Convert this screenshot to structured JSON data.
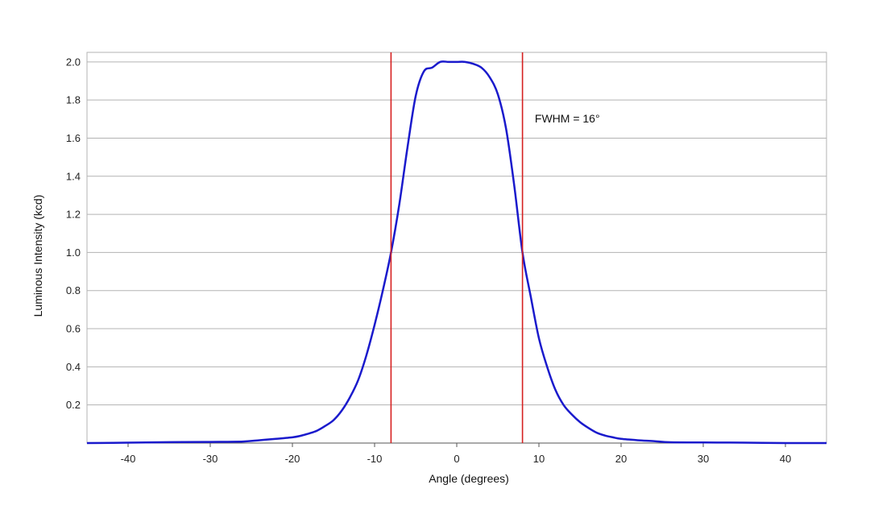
{
  "chart_data": {
    "type": "line",
    "title": "",
    "xlabel": "Angle (degrees)",
    "ylabel": "Luminous Intensity (kcd)",
    "xlim": [
      -45,
      45
    ],
    "ylim": [
      0,
      2.05
    ],
    "x_ticks": [
      -40,
      -30,
      -20,
      -10,
      0,
      10,
      20,
      30,
      40
    ],
    "x_tick_labels": [
      "-40",
      "-30",
      "-20",
      "-10",
      "0",
      "10",
      "20",
      "30",
      "40"
    ],
    "y_ticks": [
      0.2,
      0.4,
      0.6,
      0.8,
      1.0,
      1.2,
      1.4,
      1.6,
      1.8,
      2.0
    ],
    "y_tick_labels": [
      "0.2",
      "0.4",
      "0.6",
      "0.8",
      "1.0",
      "1.2",
      "1.4",
      "1.6",
      "1.8",
      "2.0"
    ],
    "grid": "horizontal",
    "series": [
      {
        "color": "#1a1acc",
        "x": [
          -45,
          -40,
          -35,
          -30,
          -26,
          -24,
          -22,
          -20,
          -19,
          -18,
          -17,
          -16,
          -15,
          -14,
          -13,
          -12,
          -11,
          -10,
          -9,
          -8,
          -7,
          -6,
          -5,
          -4,
          -3,
          -2,
          -1,
          0,
          1,
          2,
          3,
          4,
          5,
          6,
          7,
          8,
          9,
          10,
          11,
          12,
          13,
          14,
          15,
          16,
          17,
          18,
          19,
          20,
          22,
          24,
          26,
          30,
          35,
          40,
          45
        ],
        "y": [
          0.0,
          0.002,
          0.005,
          0.006,
          0.008,
          0.015,
          0.022,
          0.03,
          0.038,
          0.05,
          0.065,
          0.09,
          0.12,
          0.17,
          0.24,
          0.33,
          0.46,
          0.62,
          0.8,
          1.0,
          1.25,
          1.55,
          1.82,
          1.95,
          1.97,
          2.0,
          2.0,
          2.0,
          2.0,
          1.99,
          1.97,
          1.92,
          1.83,
          1.65,
          1.35,
          1.0,
          0.77,
          0.55,
          0.4,
          0.28,
          0.2,
          0.15,
          0.11,
          0.08,
          0.055,
          0.04,
          0.03,
          0.022,
          0.015,
          0.01,
          0.004,
          0.003,
          0.002,
          0.0,
          0.0
        ]
      }
    ],
    "markers": [
      {
        "x": -8,
        "color": "#d62020"
      },
      {
        "x": 8,
        "color": "#d62020"
      }
    ],
    "annotations": [
      {
        "text": "FWHM = 16°",
        "x": 9.5,
        "y": 1.7
      }
    ]
  }
}
